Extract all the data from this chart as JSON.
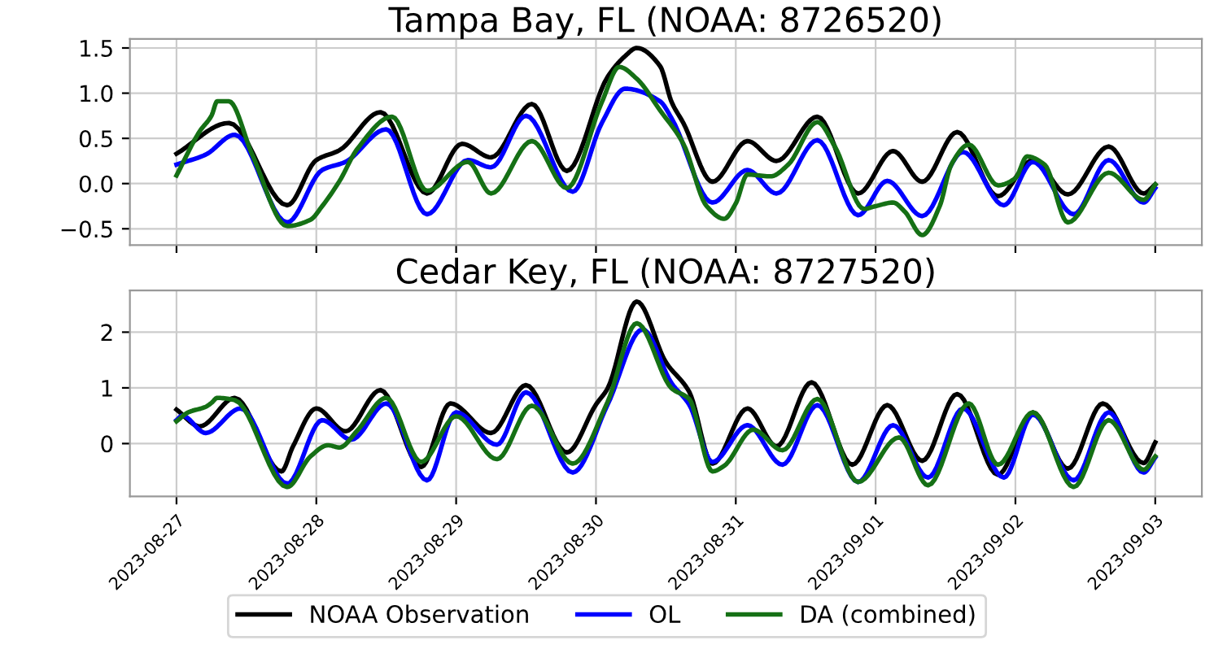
{
  "chart_data": [
    {
      "type": "line",
      "title": "Tampa Bay, FL (NOAA: 8726520)",
      "xlim": [
        "2023-08-26T16:00",
        "2023-09-03T08:00"
      ],
      "ylim": [
        -0.68,
        1.6
      ],
      "xticks": [
        "2023-08-27",
        "2023-08-28",
        "2023-08-29",
        "2023-08-30",
        "2023-08-31",
        "2023-09-01",
        "2023-09-02",
        "2023-09-03"
      ],
      "yticks": [
        {
          "value": -0.5,
          "label": "−0.5"
        },
        {
          "value": 0,
          "label": "0.0"
        },
        {
          "value": 0.5,
          "label": "0.5"
        },
        {
          "value": 1,
          "label": "1.0"
        },
        {
          "value": 1.5,
          "label": "1.5"
        }
      ],
      "tick_labels": "y",
      "grid": true,
      "line_style": "solid",
      "marker": "none",
      "series": [
        {
          "color": "#000000",
          "x": [
            "2023-08-27T00:00",
            "2023-08-27T09:00",
            "2023-08-27T19:00",
            "2023-08-28T00:00",
            "2023-08-28T04:00",
            "2023-08-28T11:00",
            "2023-08-28T19:00",
            "2023-08-29T01:00",
            "2023-08-29T06:00",
            "2023-08-29T13:00",
            "2023-08-29T19:00",
            "2023-08-30T02:00",
            "2023-08-30T05:00",
            "2023-08-30T07:00",
            "2023-08-30T11:00",
            "2023-08-30T13:00",
            "2023-08-30T15:00",
            "2023-08-30T20:00",
            "2023-08-31T02:00",
            "2023-08-31T07:00",
            "2023-08-31T14:00",
            "2023-08-31T21:00",
            "2023-09-01T03:00",
            "2023-09-01T08:00",
            "2023-09-01T14:00",
            "2023-09-01T21:00",
            "2023-09-02T03:00",
            "2023-09-02T09:00",
            "2023-09-02T16:00",
            "2023-09-02T22:00",
            "2023-09-03T00:00"
          ],
          "values": [
            0.33,
            0.67,
            -0.24,
            0.26,
            0.37,
            0.79,
            -0.11,
            0.44,
            0.29,
            0.88,
            0.14,
            1.18,
            1.41,
            1.5,
            1.3,
            0.9,
            0.67,
            0.02,
            0.47,
            0.25,
            0.74,
            -0.11,
            0.36,
            0.02,
            0.57,
            -0.14,
            0.26,
            -0.12,
            0.41,
            -0.11,
            -0.01
          ]
        },
        {
          "color": "#0000ff",
          "x": [
            "2023-08-27T00:00",
            "2023-08-27T05:00",
            "2023-08-27T10:00",
            "2023-08-27T19:00",
            "2023-08-28T01:00",
            "2023-08-28T05:00",
            "2023-08-28T12:00",
            "2023-08-28T19:00",
            "2023-08-29T02:00",
            "2023-08-29T06:00",
            "2023-08-29T12:00",
            "2023-08-29T20:00",
            "2023-08-30T01:00",
            "2023-08-30T05:00",
            "2023-08-30T11:00",
            "2023-08-30T13:00",
            "2023-08-30T20:00",
            "2023-08-31T02:00",
            "2023-08-31T07:00",
            "2023-08-31T14:00",
            "2023-08-31T21:00",
            "2023-09-01T02:00",
            "2023-09-01T08:00",
            "2023-09-01T15:00",
            "2023-09-01T22:00",
            "2023-09-02T03:00",
            "2023-09-02T10:00",
            "2023-09-02T16:00",
            "2023-09-02T22:00",
            "2023-09-03T00:00"
          ],
          "values": [
            0.21,
            0.32,
            0.54,
            -0.43,
            0.15,
            0.24,
            0.6,
            -0.34,
            0.26,
            0.18,
            0.75,
            -0.09,
            0.67,
            1.05,
            0.91,
            0.72,
            -0.21,
            0.15,
            -0.11,
            0.48,
            -0.35,
            0.03,
            -0.36,
            0.35,
            -0.24,
            0.24,
            -0.34,
            0.26,
            -0.21,
            -0.05
          ]
        },
        {
          "color": "#157015",
          "x": [
            "2023-08-27T00:00",
            "2023-08-27T04:00",
            "2023-08-27T06:00",
            "2023-08-27T07:00",
            "2023-08-27T09:00",
            "2023-08-27T13:00",
            "2023-08-27T19:00",
            "2023-08-27T23:00",
            "2023-08-28T01:00",
            "2023-08-28T04:00",
            "2023-08-28T07:00",
            "2023-08-28T13:00",
            "2023-08-28T19:00",
            "2023-08-29T02:00",
            "2023-08-29T06:00",
            "2023-08-29T13:00",
            "2023-08-29T19:00",
            "2023-08-30T01:00",
            "2023-08-30T04:00",
            "2023-08-30T07:00",
            "2023-08-30T11:00",
            "2023-08-30T15:00",
            "2023-08-30T19:00",
            "2023-08-30T22:00",
            "2023-08-31T00:00",
            "2023-08-31T02:00",
            "2023-08-31T06:00",
            "2023-08-31T09:00",
            "2023-08-31T14:00",
            "2023-08-31T17:00",
            "2023-08-31T22:00",
            "2023-09-01T00:00",
            "2023-09-01T03:00",
            "2023-09-01T05:00",
            "2023-09-01T08:00",
            "2023-09-01T11:00",
            "2023-09-01T13:00",
            "2023-09-01T16:00",
            "2023-09-01T21:00",
            "2023-09-02T00:00",
            "2023-09-02T02:00",
            "2023-09-02T05:00",
            "2023-09-02T09:00",
            "2023-09-02T16:00",
            "2023-09-02T22:00",
            "2023-09-03T00:00"
          ],
          "values": [
            0.09,
            0.58,
            0.75,
            0.91,
            0.91,
            0.32,
            -0.47,
            -0.4,
            -0.25,
            0.03,
            0.38,
            0.74,
            -0.08,
            0.24,
            -0.11,
            0.47,
            -0.05,
            0.9,
            1.29,
            1.16,
            0.81,
            0.44,
            -0.25,
            -0.39,
            -0.22,
            0.1,
            0.08,
            0.21,
            0.68,
            0.41,
            -0.28,
            -0.25,
            -0.21,
            -0.31,
            -0.57,
            -0.25,
            0.21,
            0.43,
            -0.02,
            0.06,
            0.3,
            0.21,
            -0.43,
            0.12,
            -0.18,
            -0.01
          ]
        }
      ]
    },
    {
      "type": "line",
      "title": "Cedar Key, FL (NOAA: 8727520)",
      "xlim": [
        "2023-08-26T16:00",
        "2023-09-03T08:00"
      ],
      "ylim": [
        -0.95,
        2.75
      ],
      "xticks": [
        "2023-08-27",
        "2023-08-28",
        "2023-08-29",
        "2023-08-30",
        "2023-08-31",
        "2023-09-01",
        "2023-09-02",
        "2023-09-03"
      ],
      "yticks": [
        0,
        1,
        2
      ],
      "grid": true,
      "legend": "bottom",
      "line_style": "solid",
      "marker": "none",
      "series": [
        {
          "name": "NOAA Observation",
          "color": "#000000",
          "x": [
            "2023-08-27T00:00",
            "2023-08-27T04:00",
            "2023-08-27T10:00",
            "2023-08-27T18:00",
            "2023-08-27T20:00",
            "2023-08-28T00:00",
            "2023-08-28T05:00",
            "2023-08-28T11:00",
            "2023-08-28T18:00",
            "2023-08-28T23:00",
            "2023-08-29T06:00",
            "2023-08-29T12:00",
            "2023-08-29T19:00",
            "2023-08-30T00:00",
            "2023-08-30T02:00",
            "2023-08-30T07:00",
            "2023-08-30T12:00",
            "2023-08-30T16:00",
            "2023-08-30T20:00",
            "2023-08-31T02:00",
            "2023-08-31T07:00",
            "2023-08-31T13:00",
            "2023-08-31T20:00",
            "2023-09-01T02:00",
            "2023-09-01T08:00",
            "2023-09-01T14:00",
            "2023-09-01T21:00",
            "2023-09-02T03:00",
            "2023-09-02T09:00",
            "2023-09-02T15:00",
            "2023-09-02T22:00",
            "2023-09-03T00:00"
          ],
          "values": [
            0.61,
            0.31,
            0.82,
            -0.5,
            -0.05,
            0.63,
            0.22,
            0.96,
            -0.42,
            0.72,
            0.19,
            1.05,
            -0.16,
            0.7,
            0.99,
            2.55,
            1.46,
            0.93,
            -0.36,
            0.63,
            -0.05,
            1.1,
            -0.38,
            0.69,
            -0.31,
            0.89,
            -0.56,
            0.56,
            -0.45,
            0.72,
            -0.35,
            0.02
          ]
        },
        {
          "name": "OL",
          "color": "#0000ff",
          "x": [
            "2023-08-27T00:00",
            "2023-08-27T01:00",
            "2023-08-27T05:00",
            "2023-08-27T11:00",
            "2023-08-27T19:00",
            "2023-08-28T01:00",
            "2023-08-28T06:00",
            "2023-08-28T12:00",
            "2023-08-28T19:00",
            "2023-08-29T00:00",
            "2023-08-29T07:00",
            "2023-08-29T12:00",
            "2023-08-29T20:00",
            "2023-08-30T02:00",
            "2023-08-30T08:00",
            "2023-08-30T13:00",
            "2023-08-30T16:00",
            "2023-08-30T20:00",
            "2023-08-31T02:00",
            "2023-08-31T08:00",
            "2023-08-31T14:00",
            "2023-08-31T21:00",
            "2023-09-01T03:00",
            "2023-09-01T09:00",
            "2023-09-01T15:00",
            "2023-09-01T22:00",
            "2023-09-02T03:00",
            "2023-09-02T10:00",
            "2023-09-02T16:00",
            "2023-09-02T22:00",
            "2023-09-03T00:00"
          ],
          "values": [
            0.42,
            0.5,
            0.19,
            0.63,
            -0.72,
            0.42,
            0.07,
            0.72,
            -0.66,
            0.56,
            -0.02,
            0.92,
            -0.52,
            0.7,
            2.05,
            1.08,
            0.7,
            -0.33,
            0.33,
            -0.38,
            0.69,
            -0.69,
            0.33,
            -0.61,
            0.63,
            -0.61,
            0.52,
            -0.66,
            0.56,
            -0.52,
            -0.25
          ]
        },
        {
          "name": "DA (combined)",
          "color": "#157015",
          "x": [
            "2023-08-27T00:00",
            "2023-08-27T02:00",
            "2023-08-27T05:00",
            "2023-08-27T06:00",
            "2023-08-27T07:00",
            "2023-08-27T10:00",
            "2023-08-27T19:00",
            "2023-08-27T23:00",
            "2023-08-28T02:00",
            "2023-08-28T04:00",
            "2023-08-28T07:00",
            "2023-08-28T12:00",
            "2023-08-28T18:00",
            "2023-08-29T00:00",
            "2023-08-29T07:00",
            "2023-08-29T13:00",
            "2023-08-29T20:00",
            "2023-08-30T02:00",
            "2023-08-30T07:00",
            "2023-08-30T13:00",
            "2023-08-30T16:00",
            "2023-08-30T20:00",
            "2023-08-30T22:00",
            "2023-08-31T03:00",
            "2023-08-31T08:00",
            "2023-08-31T14:00",
            "2023-08-31T21:00",
            "2023-09-01T04:00",
            "2023-09-01T09:00",
            "2023-09-01T16:00",
            "2023-09-01T21:00",
            "2023-09-02T03:00",
            "2023-09-02T10:00",
            "2023-09-02T16:00",
            "2023-09-02T22:00",
            "2023-09-03T00:00"
          ],
          "values": [
            0.4,
            0.56,
            0.66,
            0.73,
            0.82,
            0.78,
            -0.78,
            -0.23,
            -0.03,
            -0.07,
            0.23,
            0.82,
            -0.33,
            0.49,
            -0.28,
            0.68,
            -0.36,
            0.75,
            2.16,
            0.99,
            0.8,
            -0.5,
            -0.4,
            0.25,
            -0.12,
            0.8,
            -0.69,
            0.11,
            -0.75,
            0.72,
            -0.38,
            0.56,
            -0.78,
            0.42,
            -0.47,
            -0.23
          ]
        }
      ]
    }
  ]
}
